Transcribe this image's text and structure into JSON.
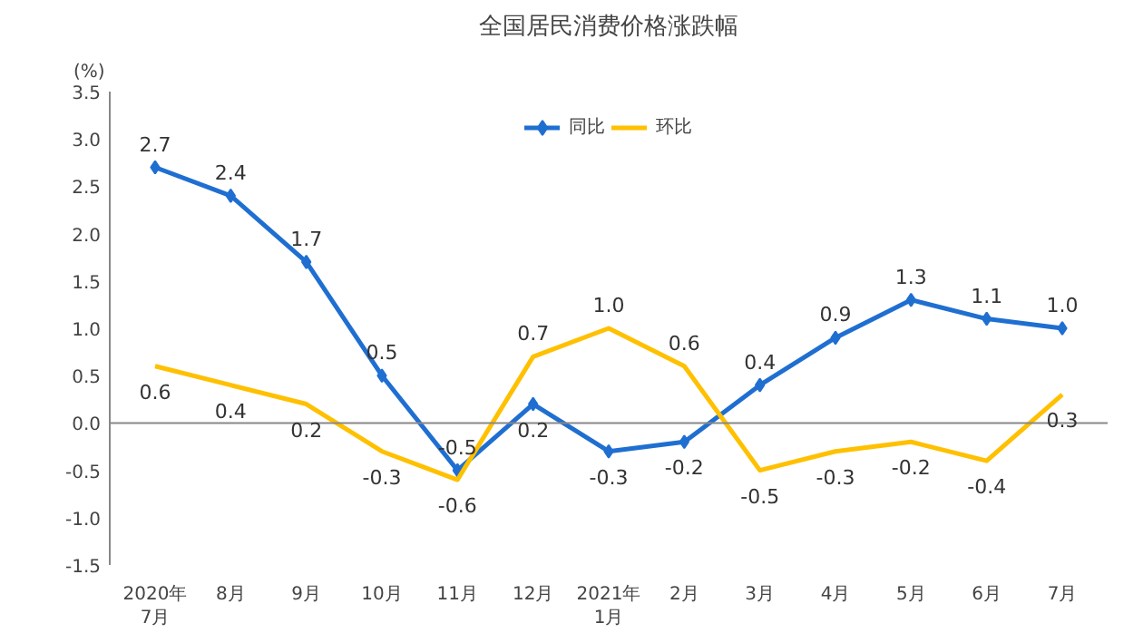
{
  "chart_data": {
    "type": "line",
    "title": "全国居民消费价格涨跌幅",
    "ylabel": "(%)",
    "categories": [
      "2020年\n7月",
      "8月",
      "9月",
      "10月",
      "11月",
      "12月",
      "2021年\n1月",
      "2月",
      "3月",
      "4月",
      "5月",
      "6月",
      "7月"
    ],
    "series": [
      {
        "name": "同比",
        "color": "#1f6fd1",
        "marker": "diamond",
        "values": [
          2.7,
          2.4,
          1.7,
          0.5,
          -0.5,
          0.2,
          -0.3,
          -0.2,
          0.4,
          0.9,
          1.3,
          1.1,
          1.0
        ],
        "value_labels": [
          "2.7",
          "2.4",
          "1.7",
          "0.5",
          "-0.5",
          "0.2",
          "-0.3",
          "-0.2",
          "0.4",
          "0.9",
          "1.3",
          "1.1",
          "1.0"
        ]
      },
      {
        "name": "环比",
        "color": "#ffc000",
        "marker": "none",
        "values": [
          0.6,
          0.4,
          0.2,
          -0.3,
          -0.6,
          0.7,
          1.0,
          0.6,
          -0.5,
          -0.3,
          -0.2,
          -0.4,
          0.3
        ],
        "value_labels": [
          "0.6",
          "0.4",
          "0.2",
          "-0.3",
          "-0.6",
          "0.7",
          "1.0",
          "0.6",
          "-0.5",
          "-0.3",
          "-0.2",
          "-0.4",
          "0.3"
        ]
      }
    ],
    "ylim": [
      -1.5,
      3.5
    ],
    "yticks": [
      {
        "value": -1.5,
        "label": "-1.5"
      },
      {
        "value": -1,
        "label": "-1.0"
      },
      {
        "value": -0.5,
        "label": "-0.5"
      },
      {
        "value": 0,
        "label": "0.0"
      },
      {
        "value": 0.5,
        "label": "0.5"
      },
      {
        "value": 1,
        "label": "1.0"
      },
      {
        "value": 1.5,
        "label": "1.5"
      },
      {
        "value": 2,
        "label": "2.0"
      },
      {
        "value": 2.5,
        "label": "2.5"
      },
      {
        "value": 3,
        "label": "3.0"
      },
      {
        "value": 3.5,
        "label": "3.5"
      }
    ],
    "ref_lines": [
      {
        "axis": "y",
        "value": 0,
        "color": "#888888"
      }
    ],
    "legend": "top",
    "grid": false,
    "line_style": "solid"
  }
}
